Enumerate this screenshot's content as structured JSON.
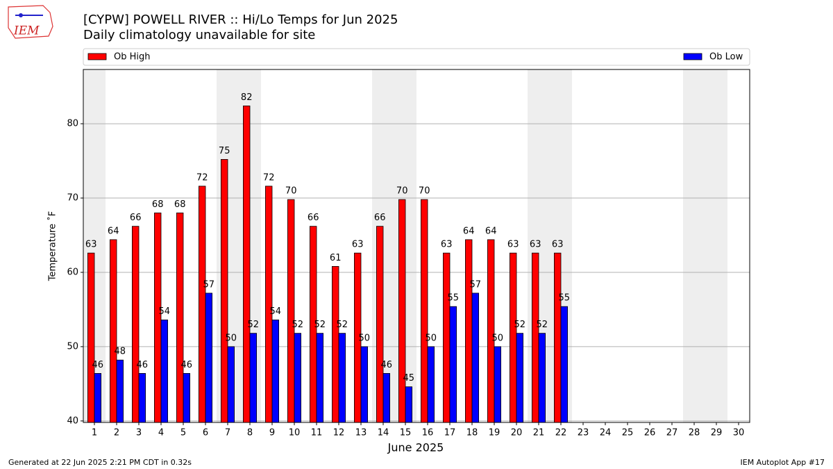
{
  "chart_data": {
    "type": "bar",
    "title": "[CYPW] POWELL RIVER :: Hi/Lo Temps for Jun 2025",
    "subtitle": "Daily climatology unavailable for site",
    "logo_text": "IEM",
    "x_label": "June 2025",
    "y_label": "Temperature ˚F",
    "footer_left": "Generated at 22 Jun 2025 2:21 PM CDT in 0.32s",
    "footer_right": "IEM Autoplot App #17",
    "categories": [
      "1",
      "2",
      "3",
      "4",
      "5",
      "6",
      "7",
      "8",
      "9",
      "10",
      "11",
      "12",
      "13",
      "14",
      "15",
      "16",
      "17",
      "18",
      "19",
      "20",
      "21",
      "22",
      "23",
      "24",
      "25",
      "26",
      "27",
      "28",
      "29",
      "30"
    ],
    "series": [
      {
        "name": "Ob High",
        "color": "#ff0000",
        "values": [
          62.6,
          64.4,
          66.2,
          68,
          68,
          71.6,
          75.2,
          82.4,
          71.6,
          69.8,
          66.2,
          60.8,
          62.6,
          66.2,
          69.8,
          69.8,
          62.6,
          64.4,
          64.4,
          62.6,
          62.6,
          62.6,
          null,
          null,
          null,
          null,
          null,
          null,
          null,
          null
        ],
        "value_labels": [
          "63",
          "64",
          "66",
          "68",
          "68",
          "72",
          "75",
          "82",
          "72",
          "70",
          "66",
          "61",
          "63",
          "66",
          "70",
          "70",
          "63",
          "64",
          "64",
          "63",
          "63",
          "63",
          null,
          null,
          null,
          null,
          null,
          null,
          null,
          null
        ]
      },
      {
        "name": "Ob Low",
        "color": "#0000ff",
        "values": [
          46.4,
          48.2,
          46.4,
          53.6,
          46.4,
          57.2,
          50,
          51.8,
          53.6,
          51.8,
          51.8,
          51.8,
          50,
          46.4,
          44.6,
          50,
          55.4,
          57.2,
          50,
          51.8,
          51.8,
          55.4,
          null,
          null,
          null,
          null,
          null,
          null,
          null,
          null
        ],
        "value_labels": [
          "46",
          "48",
          "46",
          "54",
          "46",
          "57",
          "50",
          "52",
          "54",
          "52",
          "52",
          "52",
          "50",
          "46",
          "45",
          "50",
          "55",
          "57",
          "50",
          "52",
          "52",
          "55",
          null,
          null,
          null,
          null,
          null,
          null,
          null,
          null
        ]
      }
    ],
    "ylim": [
      39.8,
      87.3
    ],
    "yticks": [
      40,
      50,
      60,
      70,
      80
    ],
    "grid": true,
    "legend": "top"
  }
}
